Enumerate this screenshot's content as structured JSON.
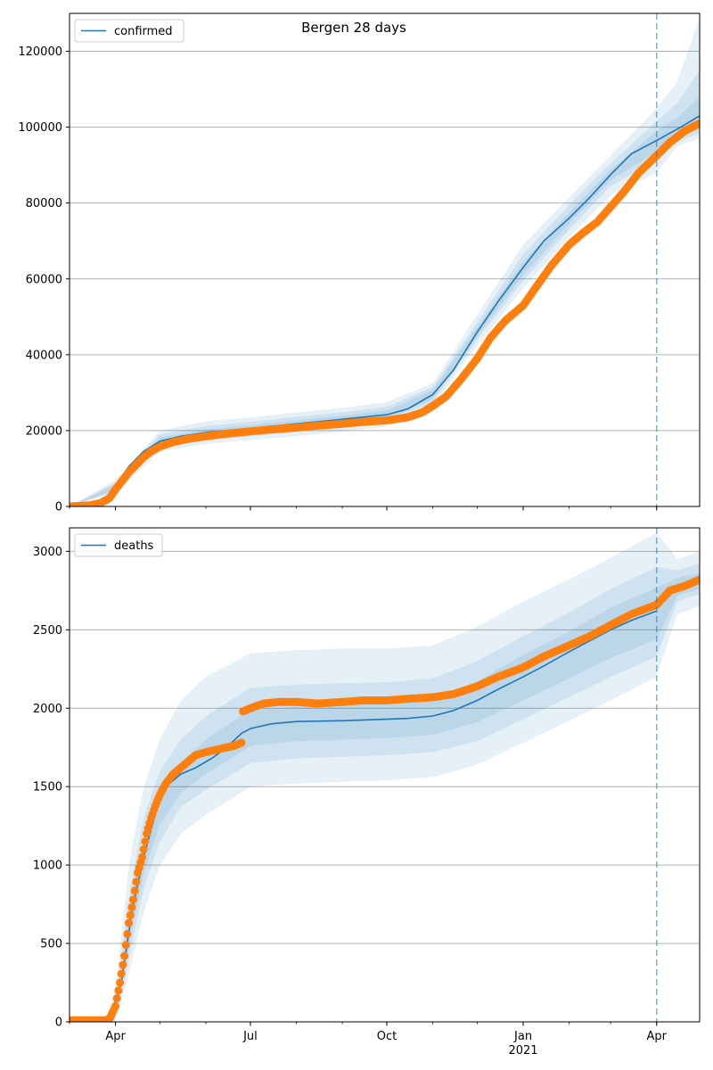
{
  "figure": {
    "title": "Bergen 28 days"
  },
  "colors": {
    "model": "#1f77b4",
    "observed": "#ff7f0e",
    "grid": "#b0b0b0",
    "band": "#1f77b4"
  },
  "chart_data": [
    {
      "type": "line",
      "title": "Bergen 28 days",
      "legend": {
        "entries": [
          "confirmed"
        ],
        "placement": "top-left"
      },
      "xlim": [
        "2020-03-01",
        "2021-04-30"
      ],
      "ylim": [
        0,
        130000
      ],
      "grid": "horizontal",
      "x_ticks": [
        {
          "date": "2020-04-01",
          "label": "Apr"
        },
        {
          "date": "2020-07-01",
          "label": "Jul"
        },
        {
          "date": "2020-10-01",
          "label": "Oct"
        },
        {
          "date": "2021-01-01",
          "label": "Jan"
        },
        {
          "date": "2021-04-01",
          "label": "Apr"
        }
      ],
      "y_ticks": [
        0,
        20000,
        40000,
        60000,
        80000,
        100000,
        120000
      ],
      "y_tick_labels": [
        "0",
        "20000",
        "40000",
        "60000",
        "80000",
        "100000",
        "120000"
      ],
      "vline_date": "2021-04-01",
      "model": {
        "name": "confirmed",
        "x": [
          "2020-03-01",
          "2020-03-15",
          "2020-03-25",
          "2020-04-01",
          "2020-04-10",
          "2020-04-20",
          "2020-05-01",
          "2020-05-15",
          "2020-06-01",
          "2020-07-01",
          "2020-08-01",
          "2020-09-01",
          "2020-10-01",
          "2020-10-15",
          "2020-11-01",
          "2020-11-15",
          "2020-12-01",
          "2020-12-15",
          "2021-01-01",
          "2021-01-15",
          "2021-02-01",
          "2021-02-15",
          "2021-03-01",
          "2021-03-15",
          "2021-04-01",
          "2021-04-15",
          "2021-04-30"
        ],
        "y": [
          0,
          200,
          1200,
          5000,
          10500,
          14500,
          17200,
          18500,
          19500,
          20600,
          21800,
          23000,
          24200,
          25700,
          29500,
          36000,
          46000,
          54000,
          63000,
          70000,
          76000,
          81500,
          87500,
          93000,
          96500,
          99500,
          103000
        ]
      },
      "bands": [
        {
          "x": [
            "2020-03-01",
            "2020-04-01",
            "2020-05-01",
            "2020-06-01",
            "2020-07-01",
            "2020-08-01",
            "2020-09-01",
            "2020-10-01",
            "2020-11-01",
            "2020-12-01",
            "2021-01-01",
            "2021-02-01",
            "2021-03-01",
            "2021-04-01",
            "2021-04-15",
            "2021-04-30"
          ],
          "lo": [
            0,
            3500,
            14500,
            16500,
            17500,
            18500,
            19800,
            21000,
            26500,
            42500,
            57500,
            71000,
            82000,
            88000,
            95000,
            97000
          ],
          "hi": [
            0,
            7000,
            20000,
            22500,
            23500,
            24800,
            26000,
            27500,
            32500,
            50500,
            69000,
            81500,
            92500,
            105000,
            112000,
            129000
          ]
        },
        {
          "x": [
            "2020-03-01",
            "2020-04-01",
            "2020-05-01",
            "2020-06-01",
            "2020-07-01",
            "2020-08-01",
            "2020-09-01",
            "2020-10-01",
            "2020-11-01",
            "2020-12-01",
            "2021-01-01",
            "2021-02-01",
            "2021-03-01",
            "2021-04-01",
            "2021-04-15",
            "2021-04-30"
          ],
          "lo": [
            0,
            4000,
            15500,
            17500,
            18500,
            19600,
            21000,
            22300,
            27500,
            44000,
            59500,
            73000,
            84500,
            91000,
            96000,
            98500
          ],
          "hi": [
            0,
            6300,
            19000,
            21200,
            22300,
            23600,
            24800,
            26300,
            31500,
            48500,
            66500,
            79500,
            90500,
            101500,
            106500,
            115000
          ]
        },
        {
          "x": [
            "2020-03-01",
            "2020-04-01",
            "2020-05-01",
            "2020-06-01",
            "2020-07-01",
            "2020-08-01",
            "2020-09-01",
            "2020-10-01",
            "2020-11-01",
            "2020-12-01",
            "2021-01-01",
            "2021-02-01",
            "2021-03-01",
            "2021-04-01",
            "2021-04-15",
            "2021-04-30"
          ],
          "lo": [
            0,
            4400,
            16300,
            18300,
            19500,
            20600,
            21900,
            23200,
            28300,
            45000,
            61000,
            74500,
            86000,
            93500,
            97500,
            100000
          ],
          "hi": [
            0,
            5800,
            18200,
            20300,
            21400,
            22700,
            23900,
            25300,
            30700,
            47200,
            64500,
            77500,
            88800,
            99000,
            102500,
            108000
          ]
        }
      ],
      "observed": {
        "x": [
          "2020-03-01",
          "2020-03-15",
          "2020-03-22",
          "2020-03-28",
          "2020-04-01",
          "2020-04-05",
          "2020-04-10",
          "2020-04-15",
          "2020-04-20",
          "2020-04-25",
          "2020-05-01",
          "2020-05-10",
          "2020-05-20",
          "2020-06-01",
          "2020-06-15",
          "2020-07-01",
          "2020-07-15",
          "2020-08-01",
          "2020-08-15",
          "2020-09-01",
          "2020-09-15",
          "2020-10-01",
          "2020-10-15",
          "2020-10-25",
          "2020-11-01",
          "2020-11-10",
          "2020-11-20",
          "2020-12-01",
          "2020-12-10",
          "2020-12-20",
          "2021-01-01",
          "2021-01-10",
          "2021-01-20",
          "2021-02-01",
          "2021-02-10",
          "2021-02-20",
          "2021-03-01",
          "2021-03-10",
          "2021-03-20",
          "2021-04-01",
          "2021-04-10",
          "2021-04-20",
          "2021-04-30"
        ],
        "y": [
          0,
          300,
          900,
          2200,
          4500,
          6500,
          9000,
          11000,
          13000,
          14500,
          15800,
          17000,
          17800,
          18500,
          19200,
          19800,
          20300,
          20800,
          21300,
          21800,
          22300,
          22700,
          23500,
          24800,
          26500,
          29000,
          33500,
          39000,
          44500,
          49000,
          53000,
          58000,
          63500,
          69000,
          72000,
          75000,
          79000,
          83000,
          88000,
          92500,
          96000,
          99000,
          101000
        ]
      }
    },
    {
      "type": "line",
      "legend": {
        "entries": [
          "deaths"
        ],
        "placement": "top-left"
      },
      "xlim": [
        "2020-03-01",
        "2021-04-30"
      ],
      "ylim": [
        0,
        3150
      ],
      "grid": "horizontal",
      "x_ticks": [
        {
          "date": "2020-04-01",
          "label": "Apr"
        },
        {
          "date": "2020-07-01",
          "label": "Jul"
        },
        {
          "date": "2020-10-01",
          "label": "Oct"
        },
        {
          "date": "2021-01-01",
          "label": "Jan",
          "sublabel": "2021"
        },
        {
          "date": "2021-04-01",
          "label": "Apr"
        }
      ],
      "y_ticks": [
        0,
        500,
        1000,
        1500,
        2000,
        2500,
        3000
      ],
      "y_tick_labels": [
        "0",
        "500",
        "1000",
        "1500",
        "2000",
        "2500",
        "3000"
      ],
      "vline_date": "2021-04-01",
      "model": {
        "name": "deaths",
        "x": [
          "2020-03-01",
          "2020-03-20",
          "2020-03-28",
          "2020-04-05",
          "2020-04-12",
          "2020-04-20",
          "2020-04-28",
          "2020-05-05",
          "2020-05-15",
          "2020-05-25",
          "2020-06-05",
          "2020-06-15",
          "2020-06-25",
          "2020-07-01",
          "2020-07-15",
          "2020-08-01",
          "2020-09-01",
          "2020-10-01",
          "2020-10-15",
          "2020-11-01",
          "2020-11-15",
          "2020-12-01",
          "2020-12-15",
          "2021-01-01",
          "2021-01-15",
          "2021-02-01",
          "2021-02-15",
          "2021-03-01",
          "2021-03-15",
          "2021-04-01"
        ],
        "y": [
          0,
          0,
          20,
          250,
          700,
          1050,
          1330,
          1500,
          1580,
          1620,
          1680,
          1750,
          1840,
          1870,
          1900,
          1915,
          1920,
          1930,
          1935,
          1950,
          1985,
          2050,
          2120,
          2200,
          2270,
          2360,
          2430,
          2500,
          2560,
          2620
        ]
      },
      "bands": [
        {
          "x": [
            "2020-03-01",
            "2020-03-25",
            "2020-04-01",
            "2020-04-10",
            "2020-04-20",
            "2020-05-01",
            "2020-05-15",
            "2020-06-01",
            "2020-07-01",
            "2020-08-01",
            "2020-09-01",
            "2020-10-01",
            "2020-11-01",
            "2020-12-01",
            "2021-01-01",
            "2021-02-01",
            "2021-03-01",
            "2021-04-01",
            "2021-04-15",
            "2021-04-30"
          ],
          "lo": [
            0,
            0,
            0,
            300,
            700,
            1000,
            1200,
            1320,
            1500,
            1520,
            1530,
            1540,
            1560,
            1640,
            1780,
            1920,
            2050,
            2200,
            2600,
            2650
          ],
          "hi": [
            0,
            0,
            200,
            1000,
            1500,
            1800,
            2050,
            2200,
            2350,
            2370,
            2380,
            2380,
            2400,
            2520,
            2680,
            2820,
            2960,
            3120,
            2950,
            3000
          ]
        },
        {
          "x": [
            "2020-03-01",
            "2020-03-25",
            "2020-04-01",
            "2020-04-10",
            "2020-04-20",
            "2020-05-01",
            "2020-05-15",
            "2020-06-01",
            "2020-07-01",
            "2020-08-01",
            "2020-09-01",
            "2020-10-01",
            "2020-11-01",
            "2020-12-01",
            "2021-01-01",
            "2021-02-01",
            "2021-03-01",
            "2021-04-01",
            "2021-04-15",
            "2021-04-30"
          ],
          "lo": [
            0,
            0,
            10,
            400,
            850,
            1150,
            1370,
            1480,
            1650,
            1680,
            1690,
            1700,
            1720,
            1790,
            1930,
            2070,
            2200,
            2330,
            2680,
            2730
          ],
          "hi": [
            0,
            0,
            120,
            800,
            1300,
            1600,
            1800,
            1950,
            2130,
            2150,
            2160,
            2165,
            2190,
            2300,
            2460,
            2610,
            2760,
            2900,
            2880,
            2920
          ]
        },
        {
          "x": [
            "2020-03-01",
            "2020-03-25",
            "2020-04-01",
            "2020-04-10",
            "2020-04-20",
            "2020-05-01",
            "2020-05-15",
            "2020-06-01",
            "2020-07-01",
            "2020-08-01",
            "2020-09-01",
            "2020-10-01",
            "2020-11-01",
            "2020-12-01",
            "2021-01-01",
            "2021-02-01",
            "2021-03-01",
            "2021-04-01",
            "2021-04-15",
            "2021-04-30"
          ],
          "lo": [
            0,
            0,
            15,
            480,
            950,
            1260,
            1460,
            1580,
            1760,
            1790,
            1800,
            1810,
            1830,
            1910,
            2050,
            2190,
            2320,
            2440,
            2720,
            2760
          ],
          "hi": [
            0,
            0,
            80,
            680,
            1150,
            1450,
            1650,
            1800,
            1990,
            2010,
            2020,
            2030,
            2060,
            2170,
            2340,
            2490,
            2640,
            2770,
            2830,
            2860
          ]
        }
      ],
      "observed": {
        "x": [
          "2020-03-01",
          "2020-03-15",
          "2020-03-25",
          "2020-03-28",
          "2020-04-01",
          "2020-04-04",
          "2020-04-07",
          "2020-04-10",
          "2020-04-13",
          "2020-04-16",
          "2020-04-19",
          "2020-04-22",
          "2020-04-25",
          "2020-04-28",
          "2020-05-01",
          "2020-05-05",
          "2020-05-10",
          "2020-05-15",
          "2020-05-20",
          "2020-05-25",
          "2020-06-01",
          "2020-06-10",
          "2020-06-20",
          "2020-06-25",
          "2020-06-26",
          "2020-07-01",
          "2020-07-10",
          "2020-07-20",
          "2020-08-01",
          "2020-08-15",
          "2020-09-01",
          "2020-09-15",
          "2020-10-01",
          "2020-10-15",
          "2020-11-01",
          "2020-11-15",
          "2020-12-01",
          "2020-12-15",
          "2021-01-01",
          "2021-01-15",
          "2021-02-01",
          "2021-02-15",
          "2021-03-01",
          "2021-03-15",
          "2021-04-01",
          "2021-04-10",
          "2021-04-20",
          "2021-04-30"
        ],
        "y": [
          10,
          10,
          10,
          20,
          100,
          250,
          420,
          630,
          780,
          950,
          1050,
          1200,
          1300,
          1380,
          1450,
          1520,
          1580,
          1620,
          1660,
          1700,
          1720,
          1740,
          1760,
          1780,
          1980,
          2000,
          2030,
          2040,
          2040,
          2030,
          2040,
          2050,
          2050,
          2060,
          2070,
          2090,
          2140,
          2200,
          2260,
          2330,
          2400,
          2460,
          2530,
          2600,
          2660,
          2750,
          2780,
          2820
        ]
      }
    }
  ]
}
